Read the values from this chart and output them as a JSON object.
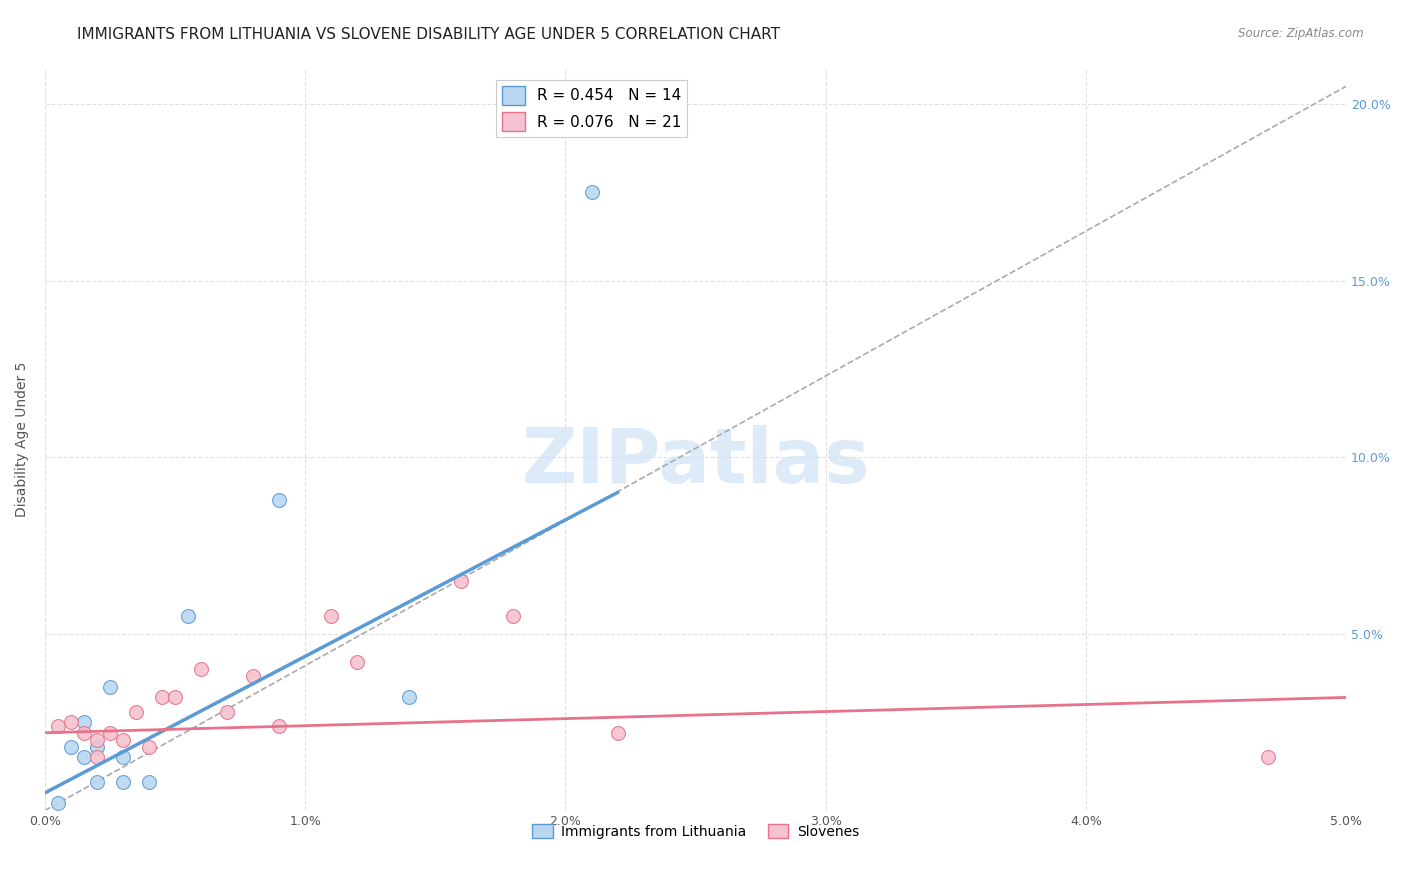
{
  "title": "IMMIGRANTS FROM LITHUANIA VS SLOVENE DISABILITY AGE UNDER 5 CORRELATION CHART",
  "source": "Source: ZipAtlas.com",
  "xlabel": "",
  "ylabel": "Disability Age Under 5",
  "xlim": [
    0.0,
    0.05
  ],
  "ylim": [
    0.0,
    0.21
  ],
  "xtick_labels": [
    "0.0%",
    "1.0%",
    "2.0%",
    "3.0%",
    "4.0%",
    "5.0%"
  ],
  "xtick_vals": [
    0.0,
    0.01,
    0.02,
    0.03,
    0.04,
    0.05
  ],
  "ytick_labels": [
    "5.0%",
    "10.0%",
    "15.0%",
    "20.0%"
  ],
  "ytick_vals": [
    0.05,
    0.1,
    0.15,
    0.2
  ],
  "legend1_r": "0.454",
  "legend1_n": "14",
  "legend2_r": "0.076",
  "legend2_n": "21",
  "blue_color": "#bad6f0",
  "blue_line_color": "#5b9bd5",
  "pink_color": "#f4c2d0",
  "pink_line_color": "#e8728a",
  "grid_color": "#e0e0e0",
  "watermark": "ZIPatlas",
  "blue_scatter_x": [
    0.0005,
    0.001,
    0.0015,
    0.0015,
    0.002,
    0.002,
    0.0025,
    0.003,
    0.003,
    0.004,
    0.0055,
    0.009,
    0.014,
    0.021
  ],
  "blue_scatter_y": [
    0.002,
    0.018,
    0.025,
    0.015,
    0.018,
    0.008,
    0.035,
    0.015,
    0.008,
    0.008,
    0.055,
    0.088,
    0.032,
    0.175
  ],
  "pink_scatter_x": [
    0.0005,
    0.001,
    0.0015,
    0.002,
    0.002,
    0.0025,
    0.003,
    0.0035,
    0.004,
    0.0045,
    0.005,
    0.006,
    0.007,
    0.008,
    0.009,
    0.011,
    0.012,
    0.016,
    0.018,
    0.022,
    0.047
  ],
  "pink_scatter_y": [
    0.024,
    0.025,
    0.022,
    0.02,
    0.015,
    0.022,
    0.02,
    0.028,
    0.018,
    0.032,
    0.032,
    0.04,
    0.028,
    0.038,
    0.024,
    0.055,
    0.042,
    0.065,
    0.055,
    0.022,
    0.015
  ],
  "blue_trend_x": [
    0.0,
    0.022
  ],
  "blue_trend_y": [
    0.005,
    0.09
  ],
  "pink_trend_x": [
    0.0,
    0.05
  ],
  "pink_trend_y": [
    0.022,
    0.032
  ],
  "ref_line_x": [
    0.0,
    0.05
  ],
  "ref_line_y": [
    0.0,
    0.205
  ],
  "marker_size": 100,
  "title_fontsize": 11,
  "axis_label_fontsize": 10,
  "tick_fontsize": 9
}
